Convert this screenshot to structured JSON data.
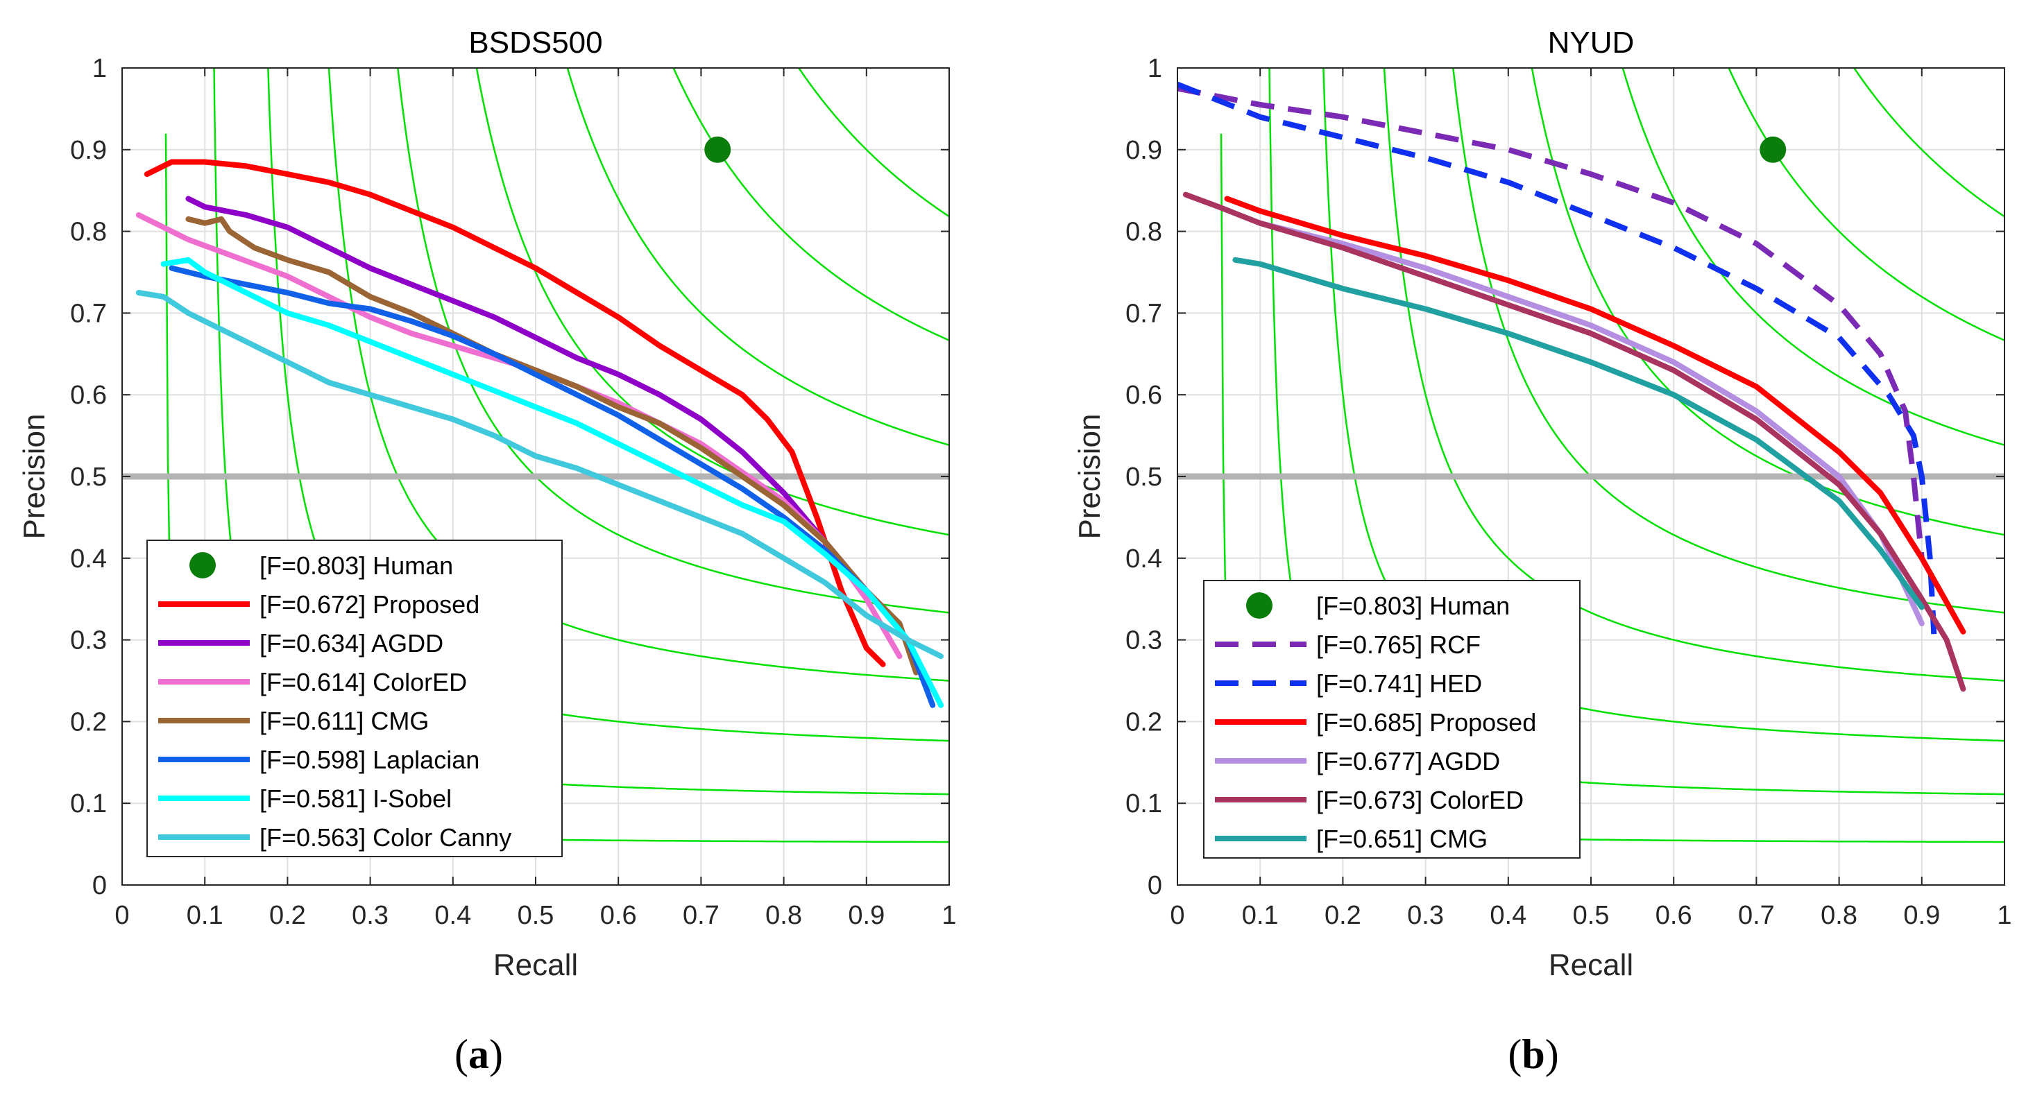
{
  "figure": {
    "panel_labels": [
      {
        "open": "(",
        "letter": "a",
        "close": ")"
      },
      {
        "open": "(",
        "letter": "b",
        "close": ")"
      }
    ]
  },
  "colors": {
    "iso_f": "#00e000",
    "reference_line": "#b3b3b3",
    "grid": "#e0e0e0",
    "human": "#0a7d0a"
  },
  "chart_data": [
    {
      "type": "line",
      "title": "BSDS500",
      "xlabel": "Recall",
      "ylabel": "Precision",
      "xlim": [
        0,
        1
      ],
      "ylim": [
        0,
        1
      ],
      "grid": true,
      "legend_position": "bottom-left",
      "xticks": [
        "0",
        "0.1",
        "0.2",
        "0.3",
        "0.4",
        "0.5",
        "0.6",
        "0.7",
        "0.8",
        "0.9",
        "1"
      ],
      "yticks": [
        "0",
        "0.1",
        "0.2",
        "0.3",
        "0.4",
        "0.5",
        "0.6",
        "0.7",
        "0.8",
        "0.9",
        "1"
      ],
      "iso_f_contours": [
        0.1,
        0.2,
        0.3,
        0.4,
        0.5,
        0.6,
        0.7,
        0.8,
        0.9
      ],
      "reference_line_y": 0.5,
      "human_point": {
        "label": "[F=0.803] Human",
        "x": 0.72,
        "y": 0.9
      },
      "series": [
        {
          "name": "[F=0.672] Proposed",
          "color": "#ff0000",
          "dash": false,
          "points": [
            [
              0.03,
              0.87
            ],
            [
              0.06,
              0.885
            ],
            [
              0.1,
              0.885
            ],
            [
              0.15,
              0.88
            ],
            [
              0.2,
              0.87
            ],
            [
              0.25,
              0.86
            ],
            [
              0.3,
              0.845
            ],
            [
              0.35,
              0.825
            ],
            [
              0.4,
              0.805
            ],
            [
              0.45,
              0.78
            ],
            [
              0.5,
              0.755
            ],
            [
              0.55,
              0.725
            ],
            [
              0.6,
              0.695
            ],
            [
              0.65,
              0.66
            ],
            [
              0.7,
              0.63
            ],
            [
              0.75,
              0.6
            ],
            [
              0.78,
              0.57
            ],
            [
              0.81,
              0.53
            ],
            [
              0.84,
              0.45
            ],
            [
              0.87,
              0.36
            ],
            [
              0.9,
              0.29
            ],
            [
              0.92,
              0.27
            ]
          ]
        },
        {
          "name": "[F=0.634] AGDD",
          "color": "#8e00c8",
          "dash": false,
          "points": [
            [
              0.08,
              0.84
            ],
            [
              0.1,
              0.83
            ],
            [
              0.15,
              0.82
            ],
            [
              0.2,
              0.805
            ],
            [
              0.25,
              0.78
            ],
            [
              0.3,
              0.755
            ],
            [
              0.35,
              0.735
            ],
            [
              0.4,
              0.715
            ],
            [
              0.45,
              0.695
            ],
            [
              0.5,
              0.67
            ],
            [
              0.55,
              0.645
            ],
            [
              0.6,
              0.625
            ],
            [
              0.65,
              0.6
            ],
            [
              0.7,
              0.57
            ],
            [
              0.75,
              0.53
            ],
            [
              0.8,
              0.48
            ],
            [
              0.85,
              0.42
            ],
            [
              0.9,
              0.36
            ],
            [
              0.93,
              0.33
            ]
          ]
        },
        {
          "name": "[F=0.614] ColorED",
          "color": "#ee6fd0",
          "dash": false,
          "points": [
            [
              0.02,
              0.82
            ],
            [
              0.05,
              0.805
            ],
            [
              0.08,
              0.79
            ],
            [
              0.12,
              0.775
            ],
            [
              0.16,
              0.76
            ],
            [
              0.2,
              0.745
            ],
            [
              0.25,
              0.72
            ],
            [
              0.3,
              0.695
            ],
            [
              0.35,
              0.675
            ],
            [
              0.4,
              0.66
            ],
            [
              0.45,
              0.645
            ],
            [
              0.5,
              0.63
            ],
            [
              0.55,
              0.61
            ],
            [
              0.6,
              0.59
            ],
            [
              0.65,
              0.565
            ],
            [
              0.7,
              0.54
            ],
            [
              0.75,
              0.505
            ],
            [
              0.8,
              0.47
            ],
            [
              0.85,
              0.42
            ],
            [
              0.9,
              0.35
            ],
            [
              0.94,
              0.28
            ]
          ]
        },
        {
          "name": "[F=0.611] CMG",
          "color": "#9a6434",
          "dash": false,
          "points": [
            [
              0.08,
              0.815
            ],
            [
              0.1,
              0.81
            ],
            [
              0.12,
              0.815
            ],
            [
              0.13,
              0.8
            ],
            [
              0.16,
              0.78
            ],
            [
              0.2,
              0.765
            ],
            [
              0.25,
              0.75
            ],
            [
              0.3,
              0.72
            ],
            [
              0.35,
              0.7
            ],
            [
              0.4,
              0.675
            ],
            [
              0.45,
              0.65
            ],
            [
              0.5,
              0.63
            ],
            [
              0.55,
              0.61
            ],
            [
              0.6,
              0.585
            ],
            [
              0.65,
              0.565
            ],
            [
              0.7,
              0.535
            ],
            [
              0.75,
              0.5
            ],
            [
              0.8,
              0.465
            ],
            [
              0.85,
              0.42
            ],
            [
              0.9,
              0.36
            ],
            [
              0.94,
              0.32
            ],
            [
              0.96,
              0.26
            ]
          ]
        },
        {
          "name": "[F=0.598] Laplacian",
          "color": "#1060e8",
          "dash": false,
          "points": [
            [
              0.06,
              0.755
            ],
            [
              0.1,
              0.745
            ],
            [
              0.15,
              0.735
            ],
            [
              0.2,
              0.725
            ],
            [
              0.25,
              0.712
            ],
            [
              0.3,
              0.705
            ],
            [
              0.35,
              0.69
            ],
            [
              0.4,
              0.672
            ],
            [
              0.45,
              0.65
            ],
            [
              0.5,
              0.625
            ],
            [
              0.55,
              0.6
            ],
            [
              0.6,
              0.575
            ],
            [
              0.65,
              0.545
            ],
            [
              0.7,
              0.515
            ],
            [
              0.75,
              0.485
            ],
            [
              0.8,
              0.45
            ],
            [
              0.85,
              0.41
            ],
            [
              0.9,
              0.36
            ],
            [
              0.95,
              0.3
            ],
            [
              0.98,
              0.22
            ]
          ]
        },
        {
          "name": "[F=0.581] I-Sobel",
          "color": "#00ffff",
          "dash": false,
          "points": [
            [
              0.05,
              0.76
            ],
            [
              0.08,
              0.765
            ],
            [
              0.1,
              0.75
            ],
            [
              0.15,
              0.725
            ],
            [
              0.2,
              0.7
            ],
            [
              0.25,
              0.685
            ],
            [
              0.3,
              0.665
            ],
            [
              0.35,
              0.645
            ],
            [
              0.4,
              0.625
            ],
            [
              0.45,
              0.605
            ],
            [
              0.5,
              0.585
            ],
            [
              0.55,
              0.565
            ],
            [
              0.6,
              0.54
            ],
            [
              0.65,
              0.515
            ],
            [
              0.7,
              0.49
            ],
            [
              0.75,
              0.465
            ],
            [
              0.8,
              0.445
            ],
            [
              0.85,
              0.405
            ],
            [
              0.9,
              0.36
            ],
            [
              0.95,
              0.3
            ],
            [
              0.99,
              0.22
            ]
          ]
        },
        {
          "name": "[F=0.563] Color Canny",
          "color": "#40c8dc",
          "dash": false,
          "points": [
            [
              0.02,
              0.725
            ],
            [
              0.05,
              0.72
            ],
            [
              0.08,
              0.7
            ],
            [
              0.1,
              0.69
            ],
            [
              0.15,
              0.665
            ],
            [
              0.2,
              0.64
            ],
            [
              0.25,
              0.615
            ],
            [
              0.3,
              0.6
            ],
            [
              0.35,
              0.585
            ],
            [
              0.4,
              0.57
            ],
            [
              0.45,
              0.55
            ],
            [
              0.5,
              0.525
            ],
            [
              0.55,
              0.51
            ],
            [
              0.6,
              0.49
            ],
            [
              0.65,
              0.47
            ],
            [
              0.7,
              0.45
            ],
            [
              0.75,
              0.43
            ],
            [
              0.8,
              0.4
            ],
            [
              0.85,
              0.37
            ],
            [
              0.9,
              0.33
            ],
            [
              0.95,
              0.3
            ],
            [
              0.99,
              0.28
            ]
          ]
        }
      ]
    },
    {
      "type": "line",
      "title": "NYUD",
      "xlabel": "Recall",
      "ylabel": "Precision",
      "xlim": [
        0,
        1
      ],
      "ylim": [
        0,
        1
      ],
      "grid": true,
      "legend_position": "bottom-left",
      "xticks": [
        "0",
        "0.1",
        "0.2",
        "0.3",
        "0.4",
        "0.5",
        "0.6",
        "0.7",
        "0.8",
        "0.9",
        "1"
      ],
      "yticks": [
        "0",
        "0.1",
        "0.2",
        "0.3",
        "0.4",
        "0.5",
        "0.6",
        "0.7",
        "0.8",
        "0.9",
        "1"
      ],
      "iso_f_contours": [
        0.1,
        0.2,
        0.3,
        0.4,
        0.5,
        0.6,
        0.7,
        0.8,
        0.9
      ],
      "reference_line_y": 0.5,
      "human_point": {
        "label": "[F=0.803] Human",
        "x": 0.72,
        "y": 0.9
      },
      "series": [
        {
          "name": "[F=0.765] RCF",
          "color": "#7a2ab4",
          "dash": true,
          "points": [
            [
              0.0,
              0.975
            ],
            [
              0.1,
              0.955
            ],
            [
              0.2,
              0.94
            ],
            [
              0.3,
              0.92
            ],
            [
              0.4,
              0.9
            ],
            [
              0.5,
              0.87
            ],
            [
              0.6,
              0.835
            ],
            [
              0.7,
              0.785
            ],
            [
              0.8,
              0.71
            ],
            [
              0.85,
              0.65
            ],
            [
              0.88,
              0.58
            ],
            [
              0.89,
              0.5
            ],
            [
              0.9,
              0.4
            ]
          ]
        },
        {
          "name": "[F=0.741] HED",
          "color": "#1030f0",
          "dash": true,
          "points": [
            [
              0.0,
              0.98
            ],
            [
              0.1,
              0.94
            ],
            [
              0.2,
              0.915
            ],
            [
              0.3,
              0.89
            ],
            [
              0.4,
              0.86
            ],
            [
              0.5,
              0.82
            ],
            [
              0.6,
              0.78
            ],
            [
              0.7,
              0.73
            ],
            [
              0.8,
              0.67
            ],
            [
              0.86,
              0.6
            ],
            [
              0.89,
              0.55
            ],
            [
              0.9,
              0.5
            ],
            [
              0.91,
              0.4
            ],
            [
              0.915,
              0.3
            ]
          ]
        },
        {
          "name": "[F=0.685] Proposed",
          "color": "#ff0000",
          "dash": false,
          "points": [
            [
              0.06,
              0.84
            ],
            [
              0.1,
              0.825
            ],
            [
              0.2,
              0.795
            ],
            [
              0.3,
              0.77
            ],
            [
              0.4,
              0.74
            ],
            [
              0.5,
              0.705
            ],
            [
              0.6,
              0.66
            ],
            [
              0.7,
              0.61
            ],
            [
              0.8,
              0.53
            ],
            [
              0.85,
              0.48
            ],
            [
              0.9,
              0.4
            ],
            [
              0.95,
              0.31
            ]
          ]
        },
        {
          "name": "[F=0.677] AGDD",
          "color": "#b48ee0",
          "dash": false,
          "points": [
            [
              0.1,
              0.81
            ],
            [
              0.2,
              0.785
            ],
            [
              0.3,
              0.755
            ],
            [
              0.4,
              0.72
            ],
            [
              0.5,
              0.685
            ],
            [
              0.6,
              0.64
            ],
            [
              0.7,
              0.58
            ],
            [
              0.8,
              0.5
            ],
            [
              0.85,
              0.43
            ],
            [
              0.9,
              0.32
            ]
          ]
        },
        {
          "name": "[F=0.673] ColorED",
          "color": "#aa3460",
          "dash": false,
          "points": [
            [
              0.01,
              0.845
            ],
            [
              0.05,
              0.83
            ],
            [
              0.1,
              0.81
            ],
            [
              0.2,
              0.78
            ],
            [
              0.3,
              0.745
            ],
            [
              0.4,
              0.71
            ],
            [
              0.5,
              0.675
            ],
            [
              0.6,
              0.63
            ],
            [
              0.7,
              0.57
            ],
            [
              0.8,
              0.49
            ],
            [
              0.85,
              0.43
            ],
            [
              0.9,
              0.35
            ],
            [
              0.93,
              0.3
            ],
            [
              0.95,
              0.24
            ]
          ]
        },
        {
          "name": "[F=0.651] CMG",
          "color": "#20a0a0",
          "dash": false,
          "points": [
            [
              0.07,
              0.765
            ],
            [
              0.1,
              0.76
            ],
            [
              0.15,
              0.745
            ],
            [
              0.2,
              0.73
            ],
            [
              0.3,
              0.705
            ],
            [
              0.4,
              0.675
            ],
            [
              0.5,
              0.64
            ],
            [
              0.6,
              0.6
            ],
            [
              0.7,
              0.545
            ],
            [
              0.8,
              0.47
            ],
            [
              0.85,
              0.41
            ],
            [
              0.9,
              0.34
            ]
          ]
        }
      ]
    }
  ]
}
